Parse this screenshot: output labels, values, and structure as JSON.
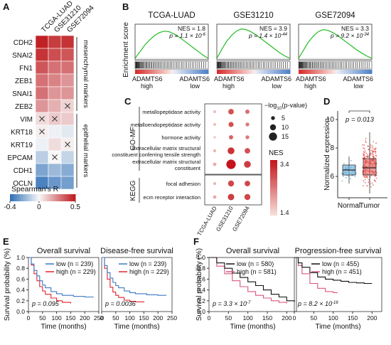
{
  "panels": {
    "A": "A",
    "B": "B",
    "C": "C",
    "D": "D",
    "E": "E",
    "F": "F"
  },
  "chart_data": [
    {
      "panel": "A",
      "type": "heatmap",
      "columns": [
        "TCGA-LUAD",
        "GSE31210",
        "GSE72094"
      ],
      "rows": [
        "CDH2",
        "SNAI2",
        "FN1",
        "ZEB1",
        "SNAI1",
        "ZEB2",
        "VIM",
        "KRT18",
        "KRT19",
        "EPCAM",
        "CDH1",
        "OCLN"
      ],
      "values": [
        [
          0.48,
          0.42,
          0.44
        ],
        [
          0.44,
          0.38,
          0.36
        ],
        [
          0.36,
          0.3,
          0.3
        ],
        [
          0.3,
          0.26,
          0.22
        ],
        [
          0.3,
          0.22,
          0.22
        ],
        [
          0.22,
          0.16,
          0.08
        ],
        [
          0.06,
          0.1,
          0.1
        ],
        [
          0.02,
          -0.02,
          -0.04
        ],
        [
          -0.02,
          0.06,
          0.02
        ],
        [
          -0.12,
          0.0,
          -0.1
        ],
        [
          -0.24,
          -0.18,
          -0.22
        ],
        [
          -0.34,
          -0.28,
          -0.26
        ]
      ],
      "crosses": [
        [
          5,
          2
        ],
        [
          6,
          0
        ],
        [
          6,
          1
        ],
        [
          7,
          0
        ],
        [
          8,
          2
        ],
        [
          9,
          1
        ]
      ],
      "group_labels": [
        "mesenchymal markers",
        "epithelial markers"
      ],
      "colorbar": {
        "label": "Spearman's R",
        "ticks": [
          "-0.4",
          "0",
          "0.5"
        ],
        "range": [
          -0.4,
          0.5
        ]
      }
    },
    {
      "panel": "B",
      "type": "line",
      "ylabel": "Enrichment score",
      "rank_labels": {
        "left": [
          "ADAMTS6",
          "high"
        ],
        "right": [
          "ADAMTS6",
          "low"
        ]
      },
      "series": [
        {
          "name": "TCGA-LUAD",
          "nes_text": "NES = 1.8",
          "p_text": "p = 1.1 × 10",
          "p_exp": "-6",
          "es": [
            0,
            0.18,
            0.36,
            0.5,
            0.62,
            0.7,
            0.74,
            0.72,
            0.66,
            0.58,
            0.48,
            0.38,
            0.28,
            0.18,
            0.08,
            0
          ]
        },
        {
          "name": "GSE31210",
          "nes_text": "NES = 3.9",
          "p_text": "p = 1.4 × 10",
          "p_exp": "-44",
          "es": [
            0,
            0.24,
            0.46,
            0.62,
            0.74,
            0.8,
            0.78,
            0.72,
            0.64,
            0.54,
            0.44,
            0.34,
            0.24,
            0.14,
            0.06,
            0
          ]
        },
        {
          "name": "GSE72094",
          "nes_text": "NES = 3.3",
          "p_text": "p = 9.2 × 10",
          "p_exp": "-34",
          "es": [
            0,
            0.22,
            0.44,
            0.6,
            0.72,
            0.78,
            0.76,
            0.7,
            0.62,
            0.52,
            0.42,
            0.32,
            0.22,
            0.14,
            0.06,
            0
          ]
        }
      ]
    },
    {
      "panel": "C",
      "type": "scatter",
      "columns": [
        "TCGA-LUAD",
        "GSE31210",
        "GSE72094"
      ],
      "groups": [
        {
          "name": "GO-MF",
          "terms": [
            "metallopeptidase activity",
            "metalloendopeptidase activity",
            "hormone activity",
            "extracellular matrix structural constituent conferring tensile strength",
            "extracellular matrix structural constituent"
          ]
        },
        {
          "name": "KEGG",
          "terms": [
            "focal adhesion",
            "ecm receptor interaction"
          ]
        }
      ],
      "term_lines": [
        [
          "metallopeptidase activity"
        ],
        [
          "metalloendopeptidase activity"
        ],
        [
          "hormone activity"
        ],
        [
          "extracellular matrix structural",
          "constituent conferring tensile strength"
        ],
        [
          "extracellular matrix structural",
          "constituent"
        ],
        [
          "focal adhesion"
        ],
        [
          "ecm receptor interaction"
        ]
      ],
      "size_values": [
        [
          3,
          9,
          6
        ],
        [
          3,
          8,
          5
        ],
        [
          2,
          6,
          5
        ],
        [
          3,
          12,
          9
        ],
        [
          4,
          18,
          12
        ],
        [
          3,
          10,
          9
        ],
        [
          4,
          11,
          10
        ]
      ],
      "nes": [
        [
          1.7,
          2.8,
          2.5
        ],
        [
          1.7,
          2.8,
          2.4
        ],
        [
          1.6,
          2.6,
          2.4
        ],
        [
          1.8,
          3.1,
          2.8
        ],
        [
          1.9,
          3.4,
          3.0
        ],
        [
          1.8,
          2.9,
          2.9
        ],
        [
          1.9,
          3.0,
          2.9
        ]
      ],
      "size_legend": {
        "title": "−log",
        "title_sub": "10",
        "title_end": "(p-value)",
        "values": [
          5,
          10,
          15
        ]
      },
      "color_legend": {
        "title": "NES",
        "min": 1.4,
        "max": 3.4,
        "ticks": [
          "3.4",
          "1.4"
        ]
      }
    },
    {
      "panel": "D",
      "type": "boxplot",
      "categories": [
        "Normal",
        "Tumor"
      ],
      "ylabel": "Normalized expression",
      "yticks": [
        6,
        8,
        10
      ],
      "ylim": [
        4.5,
        10.6
      ],
      "stats": [
        {
          "min": 5.5,
          "q1": 6.1,
          "median": 6.45,
          "q3": 6.8,
          "max": 7.4
        },
        {
          "min": 4.8,
          "q1": 6.1,
          "median": 6.6,
          "q3": 7.25,
          "max": 9.1
        }
      ],
      "colors": [
        "#5aa6d6",
        "#e4524f"
      ],
      "pvalue": "p = 0.013"
    },
    {
      "panel": "E",
      "type": "line",
      "plots": [
        {
          "title": "Overall survival",
          "legend": [
            "low (n = 239)",
            "high (n = 229)"
          ],
          "ptext": "p = 0.095",
          "low": [
            [
              0,
              1
            ],
            [
              10,
              0.88
            ],
            [
              20,
              0.76
            ],
            [
              30,
              0.66
            ],
            [
              40,
              0.57
            ],
            [
              50,
              0.49
            ],
            [
              60,
              0.44
            ],
            [
              80,
              0.37
            ],
            [
              100,
              0.33
            ],
            [
              120,
              0.3
            ],
            [
              160,
              0.28
            ],
            [
              200,
              0.27
            ],
            [
              230,
              0.26
            ]
          ],
          "high": [
            [
              0,
              1
            ],
            [
              10,
              0.86
            ],
            [
              20,
              0.7
            ],
            [
              30,
              0.57
            ],
            [
              40,
              0.46
            ],
            [
              50,
              0.38
            ],
            [
              60,
              0.32
            ],
            [
              80,
              0.25
            ],
            [
              100,
              0.2
            ],
            [
              120,
              0.17
            ],
            [
              150,
              0.15
            ]
          ]
        },
        {
          "title": "Disease-free survival",
          "legend": [
            "low (n = 239)",
            "high (n = 229)"
          ],
          "ptext": "p = 0.0036",
          "low": [
            [
              0,
              1
            ],
            [
              10,
              0.85
            ],
            [
              20,
              0.72
            ],
            [
              30,
              0.62
            ],
            [
              40,
              0.54
            ],
            [
              50,
              0.48
            ],
            [
              60,
              0.44
            ],
            [
              80,
              0.38
            ],
            [
              100,
              0.35
            ],
            [
              120,
              0.33
            ],
            [
              160,
              0.31
            ],
            [
              200,
              0.3
            ],
            [
              230,
              0.3
            ]
          ],
          "high": [
            [
              0,
              1
            ],
            [
              10,
              0.8
            ],
            [
              20,
              0.6
            ],
            [
              30,
              0.45
            ],
            [
              40,
              0.36
            ],
            [
              50,
              0.3
            ],
            [
              60,
              0.26
            ],
            [
              80,
              0.21
            ],
            [
              100,
              0.19
            ],
            [
              120,
              0.18
            ],
            [
              150,
              0.17
            ]
          ]
        }
      ],
      "xticks": [
        0,
        50,
        100,
        150,
        200,
        250
      ],
      "xmax": 250,
      "yticks": [
        0,
        0.2,
        0.4,
        0.6,
        0.8,
        1.0
      ],
      "xlabel": "Time (months)",
      "ylabel": "Survival probability (%)",
      "colors": {
        "low": "#3b78c4",
        "high": "#e0252f"
      }
    },
    {
      "panel": "F",
      "type": "line",
      "plots": [
        {
          "title": "Overall survival",
          "legend": [
            "low (n = 580)",
            "high (n = 581)"
          ],
          "ptext": "p = 3.3 × 10",
          "pexp": "-7",
          "low": [
            [
              0,
              1
            ],
            [
              20,
              0.9
            ],
            [
              40,
              0.8
            ],
            [
              60,
              0.71
            ],
            [
              80,
              0.63
            ],
            [
              100,
              0.55
            ],
            [
              120,
              0.48
            ],
            [
              140,
              0.4
            ],
            [
              160,
              0.32
            ],
            [
              180,
              0.27
            ],
            [
              200,
              0.2
            ],
            [
              220,
              0.18
            ]
          ],
          "high": [
            [
              0,
              1
            ],
            [
              20,
              0.84
            ],
            [
              40,
              0.7
            ],
            [
              60,
              0.57
            ],
            [
              80,
              0.46
            ],
            [
              100,
              0.37
            ],
            [
              120,
              0.3
            ],
            [
              140,
              0.25
            ],
            [
              160,
              0.2
            ],
            [
              180,
              0.17
            ],
            [
              200,
              0.15
            ]
          ]
        },
        {
          "title": "Progression-free survival",
          "legend": [
            "low (n = 455)",
            "high (n = 451)"
          ],
          "ptext": "p = 8.2 × 10",
          "pexp": "-16",
          "low": [
            [
              0,
              1
            ],
            [
              10,
              0.9
            ],
            [
              20,
              0.82
            ],
            [
              40,
              0.72
            ],
            [
              60,
              0.64
            ],
            [
              80,
              0.6
            ],
            [
              100,
              0.58
            ],
            [
              120,
              0.56
            ],
            [
              140,
              0.54
            ],
            [
              160,
              0.53
            ],
            [
              180,
              0.52
            ],
            [
              200,
              0.52
            ]
          ],
          "high": [
            [
              0,
              1
            ],
            [
              10,
              0.85
            ],
            [
              20,
              0.7
            ],
            [
              40,
              0.52
            ],
            [
              60,
              0.43
            ],
            [
              80,
              0.37
            ],
            [
              100,
              0.35
            ],
            [
              110,
              0.34
            ]
          ]
        }
      ],
      "xticks": [
        0,
        50,
        100,
        150,
        200
      ],
      "xmax": 225,
      "yticks": [
        0,
        0.2,
        0.4,
        0.6,
        0.8,
        1.0
      ],
      "xlabel": "Time (months)",
      "ylabel": "Survival probability (%)",
      "colors": {
        "low": "#111111",
        "high": "#d9577a"
      }
    }
  ]
}
